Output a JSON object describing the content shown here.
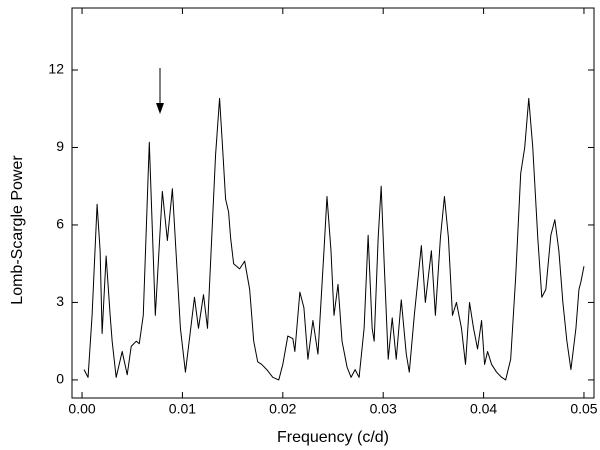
{
  "chart_data": {
    "type": "line",
    "x_label": "Frequency (c/d)",
    "y_label": "Lomb-Scargle Power",
    "color": "#000000",
    "x": [
      0.0002,
      0.0006,
      0.001,
      0.0015,
      0.0018,
      0.002,
      0.0024,
      0.0028,
      0.003,
      0.0034,
      0.004,
      0.0045,
      0.0049,
      0.0054,
      0.0057,
      0.0061,
      0.0067,
      0.0073,
      0.008,
      0.0085,
      0.009,
      0.0098,
      0.0103,
      0.0112,
      0.0116,
      0.0121,
      0.0125,
      0.0133,
      0.0137,
      0.014,
      0.0143,
      0.0146,
      0.0148,
      0.0151,
      0.0157,
      0.0162,
      0.0167,
      0.0171,
      0.0175,
      0.0179,
      0.0184,
      0.019,
      0.0196,
      0.02,
      0.0205,
      0.021,
      0.0212,
      0.0217,
      0.0221,
      0.0225,
      0.023,
      0.0235,
      0.0241,
      0.0244,
      0.0248,
      0.0251,
      0.0255,
      0.0259,
      0.0264,
      0.0268,
      0.0272,
      0.0276,
      0.0281,
      0.0285,
      0.0289,
      0.0291,
      0.0295,
      0.0298,
      0.0301,
      0.0305,
      0.0309,
      0.0313,
      0.0318,
      0.0323,
      0.0326,
      0.0331,
      0.0338,
      0.0342,
      0.0348,
      0.0352,
      0.0357,
      0.0361,
      0.0365,
      0.0369,
      0.0373,
      0.0378,
      0.0382,
      0.0386,
      0.039,
      0.0394,
      0.0398,
      0.0401,
      0.0404,
      0.0408,
      0.0413,
      0.0418,
      0.0422,
      0.0427,
      0.0432,
      0.0437,
      0.0441,
      0.0445,
      0.0449,
      0.0454,
      0.0458,
      0.0462,
      0.0467,
      0.0471,
      0.0475,
      0.0479,
      0.0483,
      0.0487,
      0.0492,
      0.0495,
      0.0497,
      0.05
    ],
    "values": [
      0.4,
      0.1,
      2.5,
      6.8,
      5,
      1.8,
      4.8,
      2.5,
      1.5,
      0.1,
      1.1,
      0.2,
      1.3,
      1.5,
      1.4,
      2.5,
      9.2,
      2.5,
      7.3,
      5.4,
      7.4,
      2,
      0.3,
      3.2,
      2,
      3.3,
      2,
      8.7,
      10.9,
      9,
      7,
      6.5,
      5.5,
      4.5,
      4.3,
      4.6,
      3.5,
      1.5,
      0.7,
      0.6,
      0.4,
      0.1,
      0,
      0.6,
      1.7,
      1.6,
      1.1,
      3.4,
      2.8,
      0.8,
      2.3,
      1,
      5,
      7.1,
      5,
      2.5,
      3.7,
      1.5,
      0.5,
      0.1,
      0.4,
      0.1,
      2,
      5.6,
      2,
      1.5,
      5.5,
      7.5,
      4.5,
      0.8,
      2.4,
      0.8,
      3.1,
      1,
      0.3,
      2.5,
      5.2,
      3,
      5,
      2.5,
      5.5,
      7.1,
      5.5,
      2.5,
      3,
      2,
      0.6,
      3,
      2,
      1.2,
      2.3,
      0.6,
      1.1,
      0.6,
      0.3,
      0.1,
      0,
      0.8,
      4,
      8,
      9,
      10.9,
      9,
      5.5,
      3.2,
      3.5,
      5.6,
      6.2,
      5,
      3,
      1.5,
      0.4,
      2,
      3.5,
      3.8,
      4.4
    ],
    "xlim": [
      -0.001,
      0.051
    ],
    "ylim": [
      -0.7,
      14.4
    ],
    "xticks": [
      {
        "value": 0,
        "label": "0.00"
      },
      0.01,
      0.02,
      0.03,
      0.04,
      0.05
    ],
    "yticks": [
      0,
      3,
      6,
      9,
      12
    ],
    "grid": false
  }
}
